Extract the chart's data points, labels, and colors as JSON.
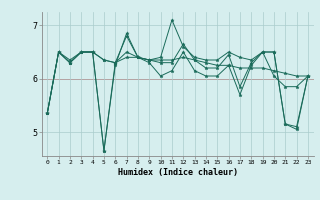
{
  "title": "",
  "xlabel": "Humidex (Indice chaleur)",
  "ylabel": "",
  "bg_color": "#d6eeee",
  "line_color": "#1a6b5a",
  "grid_color_major": "#aacccc",
  "grid_color_red": "#cc6666",
  "xlim": [
    -0.5,
    23.5
  ],
  "ylim": [
    4.55,
    7.25
  ],
  "yticks": [
    5,
    6,
    7
  ],
  "xticks": [
    0,
    1,
    2,
    3,
    4,
    5,
    6,
    7,
    8,
    9,
    10,
    11,
    12,
    13,
    14,
    15,
    16,
    17,
    18,
    19,
    20,
    21,
    22,
    23
  ],
  "series": [
    [
      5.35,
      6.5,
      6.35,
      6.5,
      6.5,
      4.65,
      6.25,
      6.85,
      6.4,
      6.35,
      6.3,
      6.3,
      6.65,
      6.35,
      6.2,
      6.2,
      6.45,
      5.85,
      6.3,
      6.5,
      6.5,
      5.15,
      5.1,
      6.05
    ],
    [
      5.35,
      6.5,
      6.3,
      6.5,
      6.5,
      4.65,
      6.3,
      6.8,
      6.4,
      6.3,
      6.05,
      6.15,
      6.5,
      6.15,
      6.05,
      6.05,
      6.25,
      5.7,
      6.25,
      6.5,
      6.05,
      5.85,
      5.85,
      6.05
    ],
    [
      5.35,
      6.5,
      6.3,
      6.5,
      6.5,
      6.35,
      6.3,
      6.4,
      6.4,
      6.35,
      6.35,
      6.35,
      6.4,
      6.35,
      6.3,
      6.25,
      6.25,
      6.2,
      6.2,
      6.2,
      6.15,
      6.1,
      6.05,
      6.05
    ],
    [
      5.35,
      6.5,
      6.3,
      6.5,
      6.5,
      6.35,
      6.3,
      6.5,
      6.4,
      6.35,
      6.4,
      7.1,
      6.6,
      6.4,
      6.35,
      6.35,
      6.5,
      6.4,
      6.35,
      6.5,
      6.5,
      5.15,
      5.05,
      6.05
    ]
  ],
  "hline_y": 6.0,
  "hline_color": "#cc4444"
}
